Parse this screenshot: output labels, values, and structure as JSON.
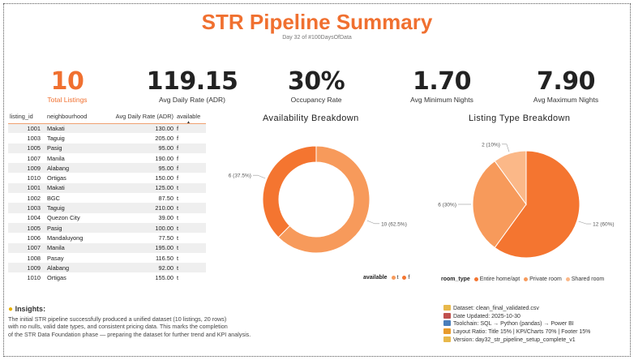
{
  "header": {
    "title": "STR Pipeline Summary",
    "subtitle": "Day 32 of #100DaysOfData"
  },
  "kpis": [
    {
      "value": "10",
      "label": "Total Listings"
    },
    {
      "value": "119.15",
      "label": "Avg Daily Rate (ADR)"
    },
    {
      "value": "30%",
      "label": "Occupancy Rate"
    },
    {
      "value": "1.70",
      "label": "Avg Minimum Nights"
    },
    {
      "value": "7.90",
      "label": "Avg Maximum Nights"
    }
  ],
  "table": {
    "columns": [
      "listing_id",
      "neighbourhood",
      "Avg Daily Rate (ADR)",
      "available"
    ],
    "rows": [
      [
        "1001",
        "Makati",
        "130.00",
        "f"
      ],
      [
        "1003",
        "Taguig",
        "205.00",
        "f"
      ],
      [
        "1005",
        "Pasig",
        "95.00",
        "f"
      ],
      [
        "1007",
        "Manila",
        "190.00",
        "f"
      ],
      [
        "1009",
        "Alabang",
        "95.00",
        "f"
      ],
      [
        "1010",
        "Ortigas",
        "150.00",
        "f"
      ],
      [
        "1001",
        "Makati",
        "125.00",
        "t"
      ],
      [
        "1002",
        "BGC",
        "87.50",
        "t"
      ],
      [
        "1003",
        "Taguig",
        "210.00",
        "t"
      ],
      [
        "1004",
        "Quezon City",
        "39.00",
        "t"
      ],
      [
        "1005",
        "Pasig",
        "100.00",
        "t"
      ],
      [
        "1006",
        "Mandaluyong",
        "77.50",
        "t"
      ],
      [
        "1007",
        "Manila",
        "195.00",
        "t"
      ],
      [
        "1008",
        "Pasay",
        "116.50",
        "t"
      ],
      [
        "1009",
        "Alabang",
        "92.00",
        "t"
      ],
      [
        "1010",
        "Ortigas",
        "155.00",
        "t"
      ]
    ]
  },
  "chart_data": [
    {
      "type": "pie",
      "variant": "donut",
      "title": "Availability Breakdown",
      "legend_title": "available",
      "categories": [
        "t",
        "f"
      ],
      "values": [
        10,
        6
      ],
      "data_labels": [
        "10 (62.5%)",
        "6 (37.5%)"
      ],
      "colors": [
        "#f79a5b",
        "#f47530"
      ],
      "legend": "bottom-right"
    },
    {
      "type": "pie",
      "title": "Listing Type Breakdown",
      "legend_title": "room_type",
      "categories": [
        "Entire home/apt",
        "Private room",
        "Shared room"
      ],
      "values": [
        12,
        6,
        2
      ],
      "data_labels": [
        "12 (60%)",
        "6 (30%)",
        "2 (10%)"
      ],
      "colors": [
        "#f47530",
        "#f79a5b",
        "#fbb888"
      ],
      "legend": "bottom-right"
    }
  ],
  "insights": {
    "heading": "Insights:",
    "lines": [
      "The initial STR pipeline successfully produced a unified dataset (10 listings, 20 rows)",
      "with no nulls, valid date types, and consistent pricing data. This marks the completion",
      "of the STR Data Foundation phase — preparing the dataset for further trend and KPI analysis."
    ]
  },
  "footer": {
    "items": [
      {
        "icon": "folder-icon",
        "color": "#e8b84a",
        "text": "Dataset: clean_final_validated.csv"
      },
      {
        "icon": "calendar-icon",
        "color": "#c0504d",
        "text": "Date Updated: 2025-10-30"
      },
      {
        "icon": "toolchain-icon",
        "color": "#4a7ebb",
        "text": "Toolchain: SQL → Python (pandas) → Power BI"
      },
      {
        "icon": "ratio-icon",
        "color": "#e89a2a",
        "text": "Layout Ratio: Title 15% | KPI/Charts 70% | Footer 15%"
      },
      {
        "icon": "folder-icon",
        "color": "#e8b84a",
        "text": "Version: day32_str_pipeline_setup_complete_v1"
      }
    ]
  }
}
